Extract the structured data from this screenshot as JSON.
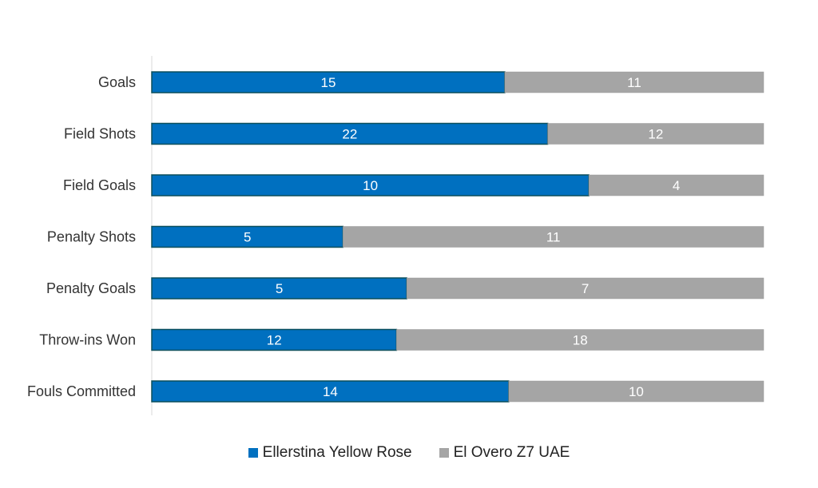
{
  "chart_data": {
    "type": "bar",
    "orientation": "horizontal",
    "stacking": "percent",
    "categories": [
      "Goals",
      "Field Shots",
      "Field Goals",
      "Penalty Shots",
      "Penalty Goals",
      "Throw-ins Won",
      "Fouls Committed"
    ],
    "series": [
      {
        "name": "Ellerstina Yellow Rose",
        "color": "#0070C0",
        "values": [
          15,
          22,
          10,
          5,
          5,
          12,
          14
        ]
      },
      {
        "name": "El Overo Z7 UAE",
        "color": "#A5A5A5",
        "values": [
          11,
          12,
          4,
          11,
          7,
          18,
          10
        ]
      }
    ],
    "data_labels": true,
    "grid": false,
    "legend_position": "bottom"
  }
}
